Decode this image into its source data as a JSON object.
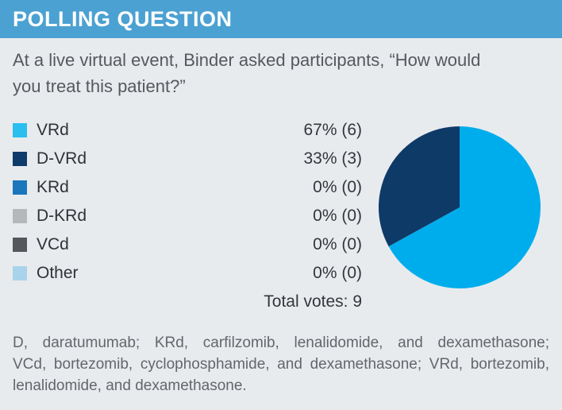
{
  "header": {
    "title": "POLLING QUESTION"
  },
  "question": {
    "text": "At a live virtual event, Binder asked participants, “How would you treat this patient?”"
  },
  "legend": {
    "items": [
      {
        "label": "VRd",
        "display": "67% (6)",
        "color": "#2BBEEF"
      },
      {
        "label": "D-VRd",
        "display": "33% (3)",
        "color": "#0C3B6C"
      },
      {
        "label": "KRd",
        "display": "0% (0)",
        "color": "#1C76BC"
      },
      {
        "label": "D-KRd",
        "display": "0% (0)",
        "color": "#B5B8BB"
      },
      {
        "label": "VCd",
        "display": "0% (0)",
        "color": "#54575B"
      },
      {
        "label": "Other",
        "display": "0% (0)",
        "color": "#A8D3EB"
      }
    ],
    "total_label": "Total votes: 9"
  },
  "chart_data": {
    "type": "pie",
    "categories": [
      "VRd",
      "D-VRd",
      "KRd",
      "D-KRd",
      "VCd",
      "Other"
    ],
    "values": [
      67,
      33,
      0,
      0,
      0,
      0
    ],
    "votes": [
      6,
      3,
      0,
      0,
      0,
      0
    ],
    "total_votes": 9,
    "colors": [
      "#00ADEC",
      "#0E3A68",
      "#1C76BC",
      "#B5B8BB",
      "#54575B",
      "#A8D3EB"
    ],
    "start_angle_deg": -90,
    "direction": "clockwise",
    "legend_position": "left"
  },
  "footnote": {
    "text": "D, daratumumab; KRd, carfilzomib, lenalidomide, and dexamethasone; VCd, bortezomib, cyclophosphamide, and dexamethasone; VRd, bortezomib, lenalidomide, and dexamethasone.",
    "lines": [
      "D, daratumumab; KRd, carfilzomib, lenalidomide, and dexamethasone;",
      "VCd, bortezomib, cyclophosphamide, and dexamethasone; VRd, bortezomib,",
      "lenalidomide, and dexamethasone."
    ]
  },
  "colors": {
    "header_bg": "#4BA1D2",
    "page_bg": "#E8EBEE",
    "title_text": "#FFFFFF",
    "question_text": "#55595D",
    "footnote_text": "#63676B"
  }
}
